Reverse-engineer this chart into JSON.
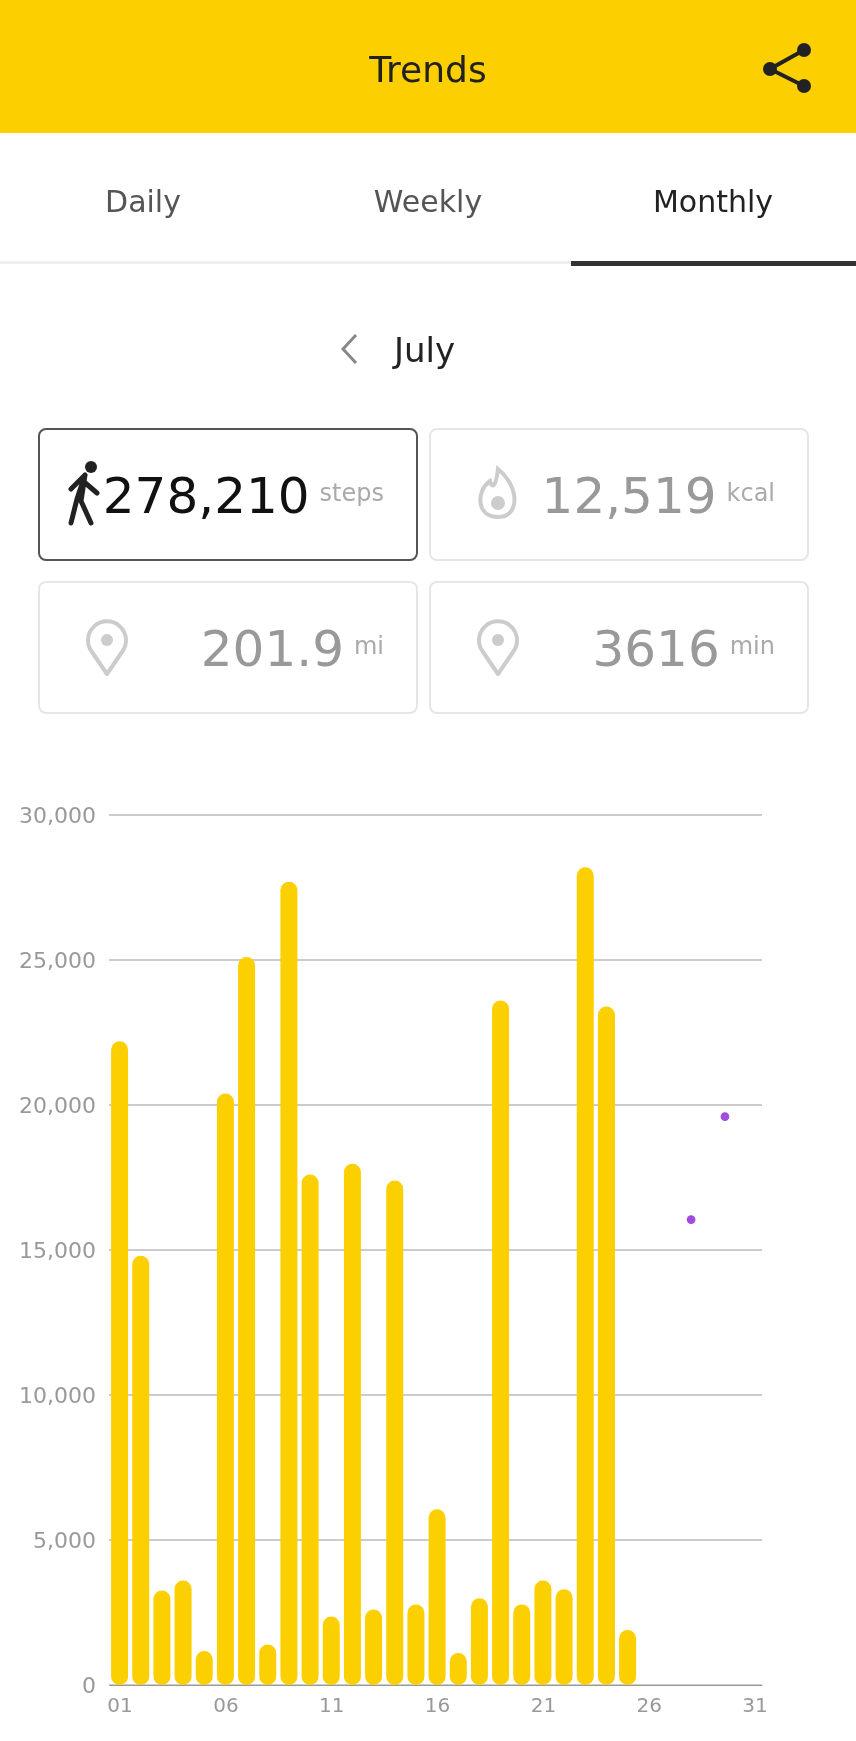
{
  "chart_data": [
    {
      "type": "other",
      "title": "Trends",
      "subtitle": "July",
      "annotations": [
        "Daily",
        "Weekly",
        "Monthly",
        "278,210",
        "steps",
        "12,519",
        "kcal",
        "201.9",
        "mi",
        "3616",
        "min"
      ]
    },
    {
      "type": "bar",
      "xlim": [
        0.5,
        31.35
      ],
      "xticks": [
        {
          "value": 1,
          "label": "01"
        },
        {
          "value": 6,
          "label": "06"
        },
        11,
        16,
        21,
        26,
        31
      ],
      "ylim": [
        0,
        30000
      ],
      "yticks": [
        0,
        {
          "value": 5000,
          "label": "5,000"
        },
        {
          "value": 10000,
          "label": "10,000"
        },
        {
          "value": 15000,
          "label": "15,000"
        },
        {
          "value": 20000,
          "label": "20,000"
        },
        {
          "value": 25000,
          "label": "25,000"
        },
        {
          "value": 30000,
          "label": "30,000"
        }
      ],
      "grid": "y",
      "series": [
        {
          "type": "bar",
          "color": "#fcd000",
          "x": [
            1,
            2,
            3,
            4,
            5,
            6,
            7,
            8,
            9,
            10,
            11,
            12,
            13,
            14,
            15,
            16,
            17,
            18,
            19,
            20,
            21,
            22,
            23,
            24,
            25
          ],
          "values": [
            22200,
            14800,
            3260,
            3600,
            1170,
            20400,
            25100,
            1400,
            27700,
            17600,
            2360,
            17970,
            2600,
            17400,
            2780,
            6060,
            1100,
            2990,
            23600,
            2780,
            3600,
            3300,
            28200,
            23400,
            1900
          ]
        },
        {
          "type": "scatter",
          "color": "#a24be0",
          "marker": "circle",
          "x": [
            28,
            29.6
          ],
          "values": [
            16050,
            19600
          ]
        }
      ]
    }
  ]
}
